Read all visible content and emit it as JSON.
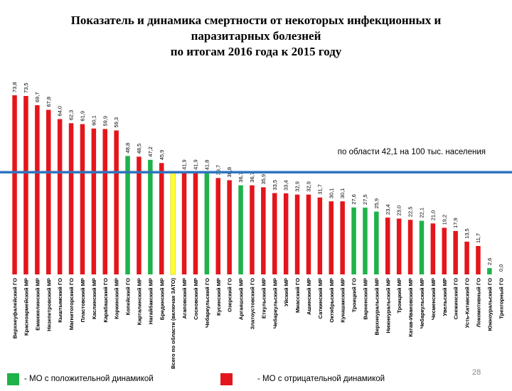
{
  "title_lines": [
    "Показатель и динамика смертности от некоторых инфекционных и",
    "паразитарных болезней",
    "по итогам 2016 года к 2015 году"
  ],
  "reference_label": "по области 42,1 на 100 тыс. населения",
  "legend": {
    "positive": "- МО с положительной динамикой",
    "negative": "- МО с отрицательной динамикой"
  },
  "page_number": "28",
  "colors": {
    "positive": "#1fb24a",
    "negative": "#e3161b",
    "region": "#ffff33",
    "reference_line": "#2f74c0"
  },
  "chart_data": {
    "type": "bar",
    "reference_value": 42.1,
    "ylim": [
      0,
      80
    ],
    "categories": [
      "Верхнеуфалейский ГО",
      "Красноармейский МР",
      "Еманжелинский МР",
      "Нязепетровский МР",
      "Кыштымский ГО",
      "Магнитогорский ГО",
      "Пластовский МР",
      "Каслинский МР",
      "Карабашский ГО",
      "Коркинский МР",
      "Копейский ГО",
      "Карталинский МР",
      "Нагайбакский МР",
      "Брединский МР",
      "Всего по области (включая ЗАТО)",
      "Агаповский МР",
      "Сосновский МР",
      "Чебаркульский ГО",
      "Кусинский МР",
      "Озерский ГО",
      "Аргаяшский МР",
      "Златоустовский ГО",
      "Еткульский МР",
      "Чебаркульский МР",
      "Уйский МР",
      "Миасский ГО",
      "Ашинский МР",
      "Саткинский МР",
      "Октябрьский МР",
      "Кунашакский МР",
      "Троицкий ГО",
      "Варненский МР",
      "Верхнеуральский МР",
      "Нижнеуральский МР",
      "Троицкий МР",
      "Катав-Ивановский МР",
      "Чебаркульский МР",
      "Чесменский МР",
      "Увельский МР",
      "Снежинский ГО",
      "Усть-Катавский ГО",
      "Локомотивный ГО",
      "Южноуральский ГО",
      "Трехгорный ГО"
    ],
    "values": [
      73.8,
      73.5,
      69.7,
      67.8,
      64.0,
      62.3,
      61.9,
      60.1,
      59.9,
      59.3,
      48.8,
      48.5,
      47.2,
      45.9,
      42.1,
      41.9,
      41.9,
      41.8,
      39.7,
      38.8,
      36.7,
      36.7,
      35.9,
      33.5,
      33.4,
      32.9,
      32.9,
      31.7,
      30.1,
      30.1,
      27.6,
      27.5,
      25.9,
      23.4,
      23.0,
      22.5,
      22.1,
      21.0,
      19.2,
      17.9,
      13.5,
      11.7,
      2.6,
      0.0
    ],
    "value_labels": [
      "73,8",
      "73,5",
      "69,7",
      "67,8",
      "64,0",
      "62,3",
      "61,9",
      "60,1",
      "59,9",
      "59,3",
      "48,8",
      "48,5",
      "47,2",
      "45,9",
      "",
      "41,9",
      "41,9",
      "41,8",
      "39,7",
      "38,8",
      "36,7",
      "36,7",
      "35,9",
      "33,5",
      "33,4",
      "32,9",
      "32,9",
      "31,7",
      "30,1",
      "30,1",
      "27,6",
      "27,5",
      "25,9",
      "23,4",
      "23,0",
      "22,5",
      "22,1",
      "21,0",
      "19,2",
      "17,9",
      "13,5",
      "11,7",
      "2,6",
      "0,0"
    ],
    "dynamics": [
      "negative",
      "negative",
      "negative",
      "negative",
      "negative",
      "negative",
      "negative",
      "negative",
      "negative",
      "negative",
      "positive",
      "negative",
      "positive",
      "negative",
      "region",
      "negative",
      "negative",
      "positive",
      "negative",
      "negative",
      "positive",
      "negative",
      "negative",
      "negative",
      "negative",
      "negative",
      "negative",
      "negative",
      "negative",
      "negative",
      "positive",
      "positive",
      "positive",
      "negative",
      "negative",
      "negative",
      "positive",
      "negative",
      "negative",
      "negative",
      "negative",
      "negative",
      "positive",
      "positive"
    ]
  }
}
